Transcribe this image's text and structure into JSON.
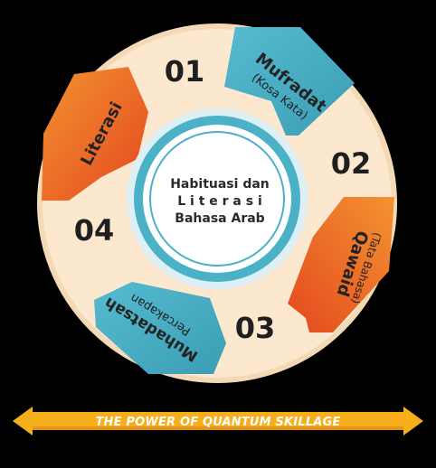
{
  "center": {
    "lines": [
      "Habituasi dan",
      "L i t e r a s i",
      "Bahasa Arab"
    ]
  },
  "segments": {
    "s1": {
      "number": "01",
      "label": "Mufradat",
      "sublabel": "(Kosa Kata)"
    },
    "s2": {
      "number": "02",
      "label": "Qawaid",
      "sublabel": "(Tata Bahasa)"
    },
    "s3": {
      "number": "03",
      "label": "Muhadatsah",
      "sublabel": "Percakapan"
    },
    "s4": {
      "number": "04",
      "label": "Literasi"
    }
  },
  "banner": {
    "text": "THE POWER OF QUANTUM SKILLAGE"
  },
  "colors": {
    "cream": "#FBE8CE",
    "teal": "#46AFC5",
    "orange": "#E85A24",
    "orange_light": "#F39331",
    "banner": "#F7AE1B",
    "banner_dark": "#E5951A"
  }
}
